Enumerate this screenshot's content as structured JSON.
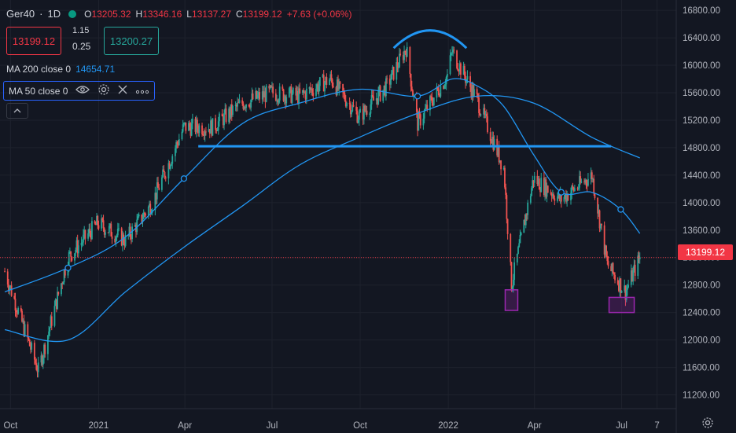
{
  "header": {
    "symbol": "Ger40",
    "interval": "1D",
    "ohlc": {
      "o_label": "O",
      "o_value": "13205.32",
      "h_label": "H",
      "h_value": "13346.16",
      "l_label": "L",
      "l_value": "13137.27",
      "c_label": "C",
      "c_value": "13199.12",
      "change": "+7.63 (+0.06%)"
    },
    "sell_price": "13199.12",
    "spread_top": "1.15",
    "spread_bottom": "0.25",
    "buy_price": "13200.27"
  },
  "indicators": [
    {
      "label": "MA 200 close 0",
      "value": "14654.71"
    },
    {
      "label": "MA 50 close 0",
      "value": ""
    }
  ],
  "colors": {
    "background": "#131722",
    "up": "#26a69a",
    "down": "#ef5350",
    "ma": "#2196f3",
    "annotation": "#2196f3",
    "box": "#9c27b0",
    "last_price": "#f23645",
    "positive": "#089981"
  },
  "chart_data": {
    "type": "line",
    "title": "Ger40 · 1D",
    "y_axis_ticks": [
      "16800.00",
      "16400.00",
      "16000.00",
      "15600.00",
      "15200.00",
      "14800.00",
      "14400.00",
      "14000.00",
      "13600.00",
      "13200.00",
      "12800.00",
      "12400.00",
      "12000.00",
      "11600.00",
      "11200.00"
    ],
    "x_axis_ticks": [
      "Oct",
      "2021",
      "Apr",
      "Jul",
      "Oct",
      "2022",
      "Apr",
      "Jul",
      "7"
    ],
    "ylim": [
      11000,
      16950
    ],
    "last_price_label": "13199.12",
    "series": [
      {
        "name": "Ger40",
        "x": [
          "2020-09-25",
          "2020-10-30",
          "2020-11-30",
          "2020-12-31",
          "2021-01-29",
          "2021-02-26",
          "2021-03-31",
          "2021-04-30",
          "2021-05-31",
          "2021-06-30",
          "2021-07-30",
          "2021-08-31",
          "2021-09-30",
          "2021-10-29",
          "2021-11-18",
          "2021-11-30",
          "2021-12-31",
          "2022-01-05",
          "2022-01-31",
          "2022-02-28",
          "2022-03-08",
          "2022-03-31",
          "2022-04-29",
          "2022-05-31",
          "2022-06-16",
          "2022-06-30",
          "2022-07-05",
          "2022-07-20"
        ],
        "values": [
          13000,
          11550,
          13200,
          13700,
          13450,
          14000,
          15100,
          15100,
          15450,
          15600,
          15550,
          15800,
          15250,
          15700,
          16250,
          15150,
          15850,
          16200,
          15500,
          14500,
          12800,
          14350,
          14050,
          14400,
          13100,
          12800,
          12700,
          13199
        ]
      },
      {
        "name": "MA 50",
        "x": [
          "2020-09-25",
          "2020-11-30",
          "2021-01-29",
          "2021-03-31",
          "2021-05-31",
          "2021-07-30",
          "2021-09-30",
          "2021-11-30",
          "2022-01-05",
          "2022-01-31",
          "2022-02-28",
          "2022-03-31",
          "2022-04-29",
          "2022-05-31",
          "2022-06-30",
          "2022-07-20"
        ],
        "values": [
          12700,
          13050,
          13500,
          14350,
          15150,
          15450,
          15650,
          15550,
          15800,
          15700,
          15400,
          14700,
          14150,
          14150,
          13900,
          13550
        ]
      },
      {
        "name": "MA 200",
        "x": [
          "2020-09-25",
          "2020-11-30",
          "2021-01-29",
          "2021-03-31",
          "2021-05-31",
          "2021-07-30",
          "2021-09-30",
          "2021-11-30",
          "2022-01-31",
          "2022-03-31",
          "2022-05-31",
          "2022-07-20"
        ],
        "values": [
          12150,
          12000,
          12700,
          13350,
          13950,
          14550,
          14950,
          15300,
          15550,
          15450,
          14950,
          14650
        ]
      }
    ],
    "annotations": [
      {
        "type": "horizontal-line",
        "name": "neckline",
        "value": 14820,
        "from": "2021-04-15",
        "to": "2022-06-20"
      },
      {
        "type": "arc",
        "name": "head-arc",
        "from": "2021-11-05",
        "to": "2022-01-20"
      },
      {
        "type": "box",
        "name": "low-box-march",
        "date": "2022-03-08",
        "low": 12430,
        "high": 12730
      },
      {
        "type": "box",
        "name": "low-box-july",
        "date": "2022-07-01",
        "low": 12400,
        "high": 12620
      }
    ]
  }
}
